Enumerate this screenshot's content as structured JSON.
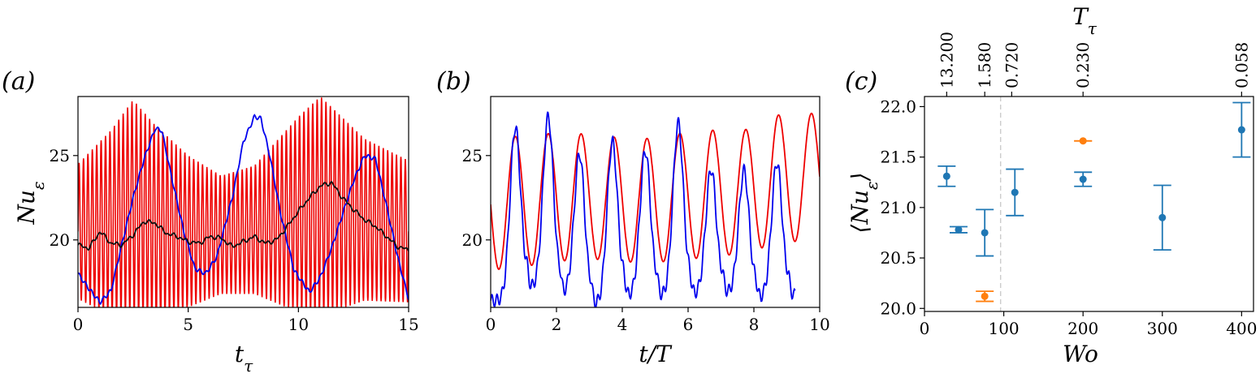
{
  "panels": {
    "a": {
      "label": "(a)"
    },
    "b": {
      "label": "(b)"
    },
    "c": {
      "label": "(c)"
    }
  },
  "colors": {
    "blue": "#0000ee",
    "red": "#ee0000",
    "black": "#111111",
    "tab_blue": "#1f77b4",
    "tab_orange": "#ff7f0e",
    "dashed": "#cccccc"
  },
  "chart_data": [
    {
      "id": "a",
      "type": "line",
      "xlabel": "t_τ",
      "ylabel": "Nu_ε",
      "xlim": [
        0,
        15
      ],
      "ylim": [
        16,
        28.5
      ],
      "xticks": [
        0,
        5,
        10,
        15
      ],
      "yticks": [
        20,
        25
      ],
      "series": [
        {
          "color": "blue",
          "x": [
            0,
            0.5,
            1.0,
            1.5,
            2.0,
            2.5,
            3.0,
            3.5,
            3.8,
            4.2,
            4.8,
            5.3,
            5.8,
            6.3,
            7.0,
            7.5,
            8.0,
            8.3,
            8.7,
            9.2,
            9.8,
            10.5,
            11.0,
            11.5,
            12.0,
            12.5,
            13.0,
            13.5,
            14.0,
            14.5,
            15.0
          ],
          "y": [
            18.0,
            17.1,
            16.3,
            17.0,
            19.8,
            22.5,
            24.8,
            26.6,
            26.5,
            24.0,
            20.5,
            18.3,
            18.0,
            19.0,
            22.5,
            25.8,
            27.3,
            27.2,
            25.0,
            21.5,
            18.2,
            16.9,
            17.8,
            19.5,
            21.5,
            23.5,
            25.0,
            24.8,
            22.0,
            19.0,
            16.5
          ]
        },
        {
          "color": "red",
          "type": "oscillation",
          "period": 0.2,
          "center": [
            20.5,
            21,
            22,
            21,
            20.5,
            20.3,
            20.6,
            21.5,
            22,
            21.2,
            20.5
          ],
          "amplitude": [
            4,
            5.5,
            6.3,
            5.8,
            4.5,
            3.5,
            3.8,
            5.8,
            6.5,
            4.8,
            4.2
          ],
          "x_anchor": [
            0,
            1.5,
            2.5,
            3.5,
            5,
            6.5,
            8,
            10,
            11,
            13,
            15
          ]
        },
        {
          "color": "black",
          "x": [
            0,
            0.5,
            1.0,
            1.5,
            2.0,
            2.5,
            3.0,
            3.5,
            4.0,
            4.5,
            5.0,
            5.5,
            6.0,
            6.5,
            7.0,
            7.5,
            8.0,
            8.5,
            9.0,
            9.5,
            10.0,
            10.5,
            11.0,
            11.5,
            12.0,
            12.5,
            13.0,
            13.5,
            14.0,
            14.5,
            15.0
          ],
          "y": [
            19.7,
            19.5,
            20.5,
            19.8,
            19.7,
            20.3,
            21.1,
            21.0,
            20.4,
            20.2,
            19.9,
            19.8,
            20.2,
            20.1,
            19.6,
            19.9,
            20.2,
            19.8,
            20.0,
            20.8,
            21.7,
            22.5,
            23.2,
            23.4,
            22.5,
            21.8,
            21.2,
            20.8,
            20.2,
            19.6,
            19.4
          ]
        }
      ]
    },
    {
      "id": "b",
      "type": "line",
      "xlabel": "t/T",
      "ylabel": "",
      "xlim": [
        0,
        10
      ],
      "ylim": [
        16,
        28.5
      ],
      "xticks": [
        0,
        2,
        4,
        6,
        8,
        10
      ],
      "yticks": [
        20,
        25
      ],
      "series": [
        {
          "color": "red",
          "type": "sine",
          "period": 1.0,
          "phase": 0.75,
          "x_anchor": [
            0,
            1.7,
            2.7,
            3.7,
            4.7,
            5.7,
            6.7,
            7.7,
            8.7,
            9.7
          ],
          "max": [
            26,
            26.3,
            26.3,
            26.1,
            26.0,
            26.3,
            26.5,
            26.5,
            27.4,
            27.5
          ],
          "min": [
            18.2,
            18.6,
            18.9,
            18.8,
            18.6,
            18.8,
            19.0,
            19.2,
            19.8,
            20.0
          ],
          "x_end": 10
        },
        {
          "color": "blue",
          "type": "peaks",
          "x_end": 9.25,
          "peaks": [
            0.75,
            1.75,
            2.7,
            3.7,
            4.7,
            5.7,
            6.7,
            7.7,
            8.7
          ],
          "peak_values": [
            26.7,
            27.3,
            25.1,
            25.8,
            25.3,
            26.9,
            24.2,
            24.1,
            24.6
          ],
          "trough_values": [
            16.4,
            17.2,
            16.9,
            16.2,
            16.7,
            16.7,
            16.8,
            16.9,
            16.6,
            16.7
          ]
        }
      ]
    },
    {
      "id": "c",
      "type": "scatter",
      "xlabel": "Wo",
      "ylabel": "⟨Nu_ε⟩",
      "top_label": "T_τ",
      "xlim": [
        0,
        415
      ],
      "ylim": [
        19.97,
        22.1
      ],
      "xticks": [
        0,
        100,
        200,
        300,
        400
      ],
      "yticks": [
        20.0,
        20.5,
        21.0,
        21.5,
        22.0
      ],
      "top_ticks": [
        {
          "x": 28,
          "label": "13.200"
        },
        {
          "x": 76,
          "label": "1.580"
        },
        {
          "x": 110,
          "label": "0.720"
        },
        {
          "x": 200,
          "label": "0.230"
        },
        {
          "x": 400,
          "label": "0.058"
        }
      ],
      "vline_x": 96,
      "points": [
        {
          "x": 28,
          "y": 21.31,
          "err": 0.1,
          "color": "tab_blue"
        },
        {
          "x": 43,
          "y": 20.78,
          "err": 0.03,
          "color": "tab_blue"
        },
        {
          "x": 76,
          "y": 20.75,
          "err": 0.23,
          "color": "tab_blue"
        },
        {
          "x": 76,
          "y": 20.12,
          "err": 0.05,
          "color": "tab_orange"
        },
        {
          "x": 114,
          "y": 21.15,
          "err": 0.23,
          "color": "tab_blue"
        },
        {
          "x": 200,
          "y": 21.28,
          "err": 0.07,
          "color": "tab_blue"
        },
        {
          "x": 200,
          "y": 21.66,
          "err": 0.0,
          "color": "tab_orange"
        },
        {
          "x": 300,
          "y": 20.9,
          "err": 0.32,
          "color": "tab_blue"
        },
        {
          "x": 400,
          "y": 21.77,
          "err": 0.27,
          "color": "tab_blue"
        }
      ]
    }
  ]
}
